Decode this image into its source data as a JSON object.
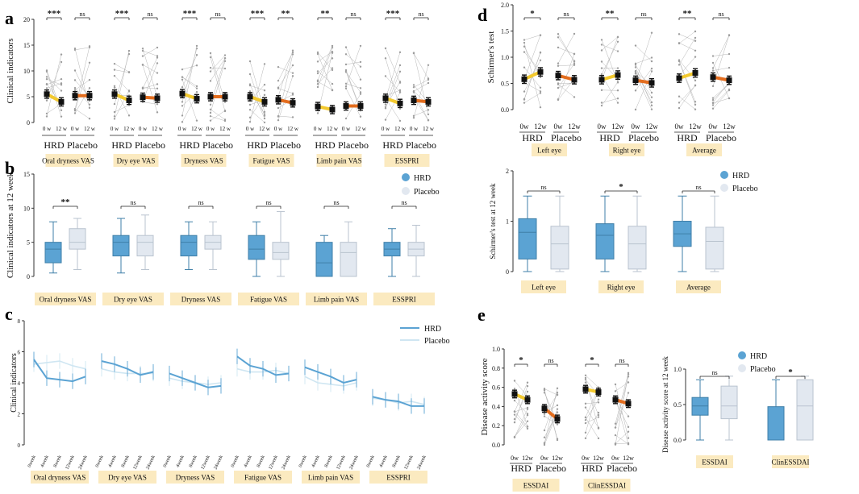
{
  "colors": {
    "hrd": "#5ba3d3",
    "placebo": "#e2e8f0",
    "yellow": "#f3c92e",
    "orange": "#e36d1e",
    "label_bg": "#fbeac0",
    "gray_line": "#b5b5b5",
    "axis": "#333333"
  },
  "panel_letters": {
    "a": "a",
    "b": "b",
    "c": "c",
    "d": "d",
    "e": "e"
  },
  "legend": {
    "hrd": "HRD",
    "placebo": "Placebo"
  },
  "chart_data": [
    {
      "panel": "a",
      "type": "scatter",
      "ylabel": "Clinical indicators",
      "ylim": [
        0,
        20
      ],
      "yticks": [
        0,
        5,
        10,
        15,
        20
      ],
      "time_labels": [
        "0 w",
        "12 w"
      ],
      "group_names": [
        "HRD",
        "Placebo"
      ],
      "indicators": [
        {
          "name": "Oral dryness VAS",
          "hrd": [
            5.5,
            4.0
          ],
          "placebo": [
            5.2,
            5.2
          ],
          "sig": [
            "***",
            "ns"
          ]
        },
        {
          "name": "Dry eye VAS",
          "hrd": [
            5.5,
            4.3
          ],
          "placebo": [
            4.9,
            4.7
          ],
          "sig": [
            "***",
            "ns"
          ]
        },
        {
          "name": "Dryness VAS",
          "hrd": [
            5.6,
            4.6
          ],
          "placebo": [
            5.0,
            5.0
          ],
          "sig": [
            "***",
            "ns"
          ]
        },
        {
          "name": "Fatigue VAS",
          "hrd": [
            5.0,
            4.0
          ],
          "placebo": [
            4.4,
            3.8
          ],
          "sig": [
            "***",
            "**"
          ]
        },
        {
          "name": "Limb pain VAS",
          "hrd": [
            3.1,
            2.5
          ],
          "placebo": [
            3.2,
            3.2
          ],
          "sig": [
            "**",
            "ns"
          ]
        },
        {
          "name": "ESSPRI",
          "hrd": [
            4.7,
            3.7
          ],
          "placebo": [
            4.3,
            4.0
          ],
          "sig": [
            "***",
            "ns"
          ]
        }
      ]
    },
    {
      "panel": "b",
      "type": "box",
      "ylabel": "Clinical indicators at 12 week",
      "ylim": [
        0,
        15
      ],
      "yticks": [
        0,
        5,
        10,
        15
      ],
      "series": [
        "HRD",
        "Placebo"
      ],
      "groups": [
        {
          "name": "Oral dryness VAS",
          "sig": "**",
          "hrd": {
            "min": 0.5,
            "q1": 2.0,
            "median": 4.0,
            "q3": 5.0,
            "max": 8.0
          },
          "placebo": {
            "min": 1.0,
            "q1": 4.0,
            "median": 5.0,
            "q3": 7.0,
            "max": 8.5
          }
        },
        {
          "name": "Dry eye VAS",
          "sig": "ns",
          "hrd": {
            "min": 0.5,
            "q1": 3.0,
            "median": 5.0,
            "q3": 6.0,
            "max": 8.5
          },
          "placebo": {
            "min": 1.0,
            "q1": 3.0,
            "median": 5.0,
            "q3": 6.0,
            "max": 9.0
          }
        },
        {
          "name": "Dryness VAS",
          "sig": "ns",
          "hrd": {
            "min": 1.0,
            "q1": 3.0,
            "median": 5.0,
            "q3": 6.0,
            "max": 8.0
          },
          "placebo": {
            "min": 1.0,
            "q1": 4.0,
            "median": 5.0,
            "q3": 6.0,
            "max": 8.0
          }
        },
        {
          "name": "Fatigue VAS",
          "sig": "ns",
          "hrd": {
            "min": 0.0,
            "q1": 2.5,
            "median": 4.0,
            "q3": 6.0,
            "max": 8.0
          },
          "placebo": {
            "min": 0.0,
            "q1": 2.5,
            "median": 3.5,
            "q3": 5.0,
            "max": 9.5
          }
        },
        {
          "name": "Limb pain VAS",
          "sig": "ns",
          "hrd": {
            "min": 0.0,
            "q1": 0.0,
            "median": 2.0,
            "q3": 5.0,
            "max": 6.0
          },
          "placebo": {
            "min": 0.0,
            "q1": 0.0,
            "median": 3.5,
            "q3": 5.0,
            "max": 8.0
          }
        },
        {
          "name": "ESSPRI",
          "sig": "ns",
          "hrd": {
            "min": 0.0,
            "q1": 3.0,
            "median": 4.0,
            "q3": 5.0,
            "max": 7.0
          },
          "placebo": {
            "min": 0.0,
            "q1": 3.0,
            "median": 4.0,
            "q3": 5.0,
            "max": 7.5
          }
        }
      ]
    },
    {
      "panel": "c",
      "type": "line",
      "ylabel": "Clinical indicators",
      "ylim": [
        0,
        8
      ],
      "yticks": [
        0,
        2,
        4,
        6,
        8
      ],
      "x": [
        "0week",
        "4week",
        "8week",
        "12week",
        "24week"
      ],
      "series": [
        "HRD",
        "Placebo"
      ],
      "groups": [
        {
          "name": "Oral dryness VAS",
          "hrd": [
            5.5,
            4.3,
            4.2,
            4.1,
            4.4
          ],
          "placebo": [
            5.2,
            5.3,
            5.4,
            5.1,
            4.9
          ]
        },
        {
          "name": "Dry eye VAS",
          "hrd": [
            5.4,
            5.2,
            4.9,
            4.5,
            4.7
          ],
          "placebo": [
            4.9,
            4.7,
            4.6,
            4.6,
            4.6
          ]
        },
        {
          "name": "Dryness VAS",
          "hrd": [
            4.6,
            4.3,
            4.0,
            3.7,
            3.8
          ],
          "placebo": [
            4.3,
            4.1,
            4.0,
            3.9,
            4.0
          ]
        },
        {
          "name": "Fatigue VAS",
          "hrd": [
            5.7,
            5.1,
            4.9,
            4.5,
            4.6
          ],
          "placebo": [
            4.9,
            4.7,
            4.7,
            4.8,
            4.6
          ]
        },
        {
          "name": "Limb pain VAS",
          "hrd": [
            5.0,
            4.7,
            4.4,
            4.0,
            4.2
          ],
          "placebo": [
            4.4,
            4.0,
            3.9,
            3.8,
            4.0
          ]
        },
        {
          "name": "ESSPRI",
          "hrd": [
            3.1,
            2.9,
            2.8,
            2.5,
            2.5
          ],
          "placebo": [
            3.0,
            2.9,
            2.7,
            2.8,
            2.6
          ]
        }
      ]
    },
    {
      "panel": "d",
      "type": "scatter",
      "ylabel": "Schirmer's test",
      "ylim": [
        0,
        2.0
      ],
      "yticks": [
        0.0,
        0.5,
        1.0,
        1.5,
        2.0
      ],
      "ytick_labels": [
        "0.0",
        "0.5",
        "1.0",
        "1.5",
        "2.0"
      ],
      "time_labels": [
        "0w",
        "12w"
      ],
      "group_names": [
        "HRD",
        "Placebo"
      ],
      "indicators": [
        {
          "name": "Left eye",
          "hrd": [
            0.58,
            0.72
          ],
          "placebo": [
            0.65,
            0.57
          ],
          "sig": [
            "*",
            "ns"
          ]
        },
        {
          "name": "Right eye",
          "hrd": [
            0.57,
            0.66
          ],
          "placebo": [
            0.56,
            0.51
          ],
          "sig": [
            "**",
            "ns"
          ]
        },
        {
          "name": "Average",
          "hrd": [
            0.6,
            0.7
          ],
          "placebo": [
            0.62,
            0.56
          ],
          "sig": [
            "**",
            "ns"
          ]
        }
      ]
    },
    {
      "panel": "d2",
      "type": "box",
      "ylabel": "Schirmer's test at 12 week",
      "ylim": [
        0,
        2
      ],
      "yticks": [
        0,
        1,
        2
      ],
      "series": [
        "HRD",
        "Placebo"
      ],
      "groups": [
        {
          "name": "Left eye",
          "sig": "ns",
          "hrd": {
            "min": 0.0,
            "q1": 0.25,
            "median": 0.78,
            "q3": 1.05,
            "max": 1.5
          },
          "placebo": {
            "min": 0.0,
            "q1": 0.05,
            "median": 0.55,
            "q3": 0.9,
            "max": 1.5
          }
        },
        {
          "name": "Right eye",
          "sig": "*",
          "hrd": {
            "min": 0.0,
            "q1": 0.25,
            "median": 0.72,
            "q3": 0.95,
            "max": 1.5
          },
          "placebo": {
            "min": 0.0,
            "q1": 0.05,
            "median": 0.55,
            "q3": 0.9,
            "max": 1.5
          }
        },
        {
          "name": "Average",
          "sig": "ns",
          "hrd": {
            "min": 0.0,
            "q1": 0.5,
            "median": 0.75,
            "q3": 1.0,
            "max": 1.5
          },
          "placebo": {
            "min": 0.0,
            "q1": 0.05,
            "median": 0.6,
            "q3": 0.88,
            "max": 1.5
          }
        }
      ]
    },
    {
      "panel": "e",
      "type": "scatter",
      "ylabel": "Disease activity score",
      "ylim": [
        0,
        1.0
      ],
      "yticks": [
        0,
        0.2,
        0.4,
        0.6,
        0.8,
        1.0
      ],
      "ytick_labels": [
        "0.0",
        "0.2",
        "0.4",
        "0.6",
        "0.8",
        "1.0"
      ],
      "time_labels": [
        "0w",
        "12w"
      ],
      "group_names": [
        "HRD",
        "Placebo"
      ],
      "indicators": [
        {
          "name": "ESSDAI",
          "hrd": [
            0.53,
            0.47
          ],
          "placebo": [
            0.38,
            0.27
          ],
          "sig": [
            "*",
            "ns"
          ]
        },
        {
          "name": "ClinESSDAI",
          "hrd": [
            0.58,
            0.55
          ],
          "placebo": [
            0.47,
            0.43
          ],
          "sig": [
            "*",
            "ns"
          ]
        }
      ]
    },
    {
      "panel": "e2",
      "type": "box",
      "ylabel": "Disease activity score at 12 week",
      "ylim": [
        0,
        1.0
      ],
      "yticks": [
        0,
        0.5,
        1.0
      ],
      "ytick_labels": [
        "0.0",
        "0.5",
        "1.0"
      ],
      "series": [
        "HRD",
        "Placebo"
      ],
      "groups": [
        {
          "name": "ESSDAI",
          "sig": "ns",
          "hrd": {
            "min": 0.0,
            "q1": 0.35,
            "median": 0.48,
            "q3": 0.6,
            "max": 0.85
          },
          "placebo": {
            "min": 0.0,
            "q1": 0.3,
            "median": 0.48,
            "q3": 0.76,
            "max": 0.9
          }
        },
        {
          "name": "ClinESSDAI",
          "sig": "*",
          "hrd": {
            "min": 0.0,
            "q1": 0.0,
            "median": 0.0,
            "q3": 0.47,
            "max": 0.85
          },
          "placebo": {
            "min": 0.0,
            "q1": 0.0,
            "median": 0.48,
            "q3": 0.85,
            "max": 0.9
          }
        }
      ]
    }
  ]
}
